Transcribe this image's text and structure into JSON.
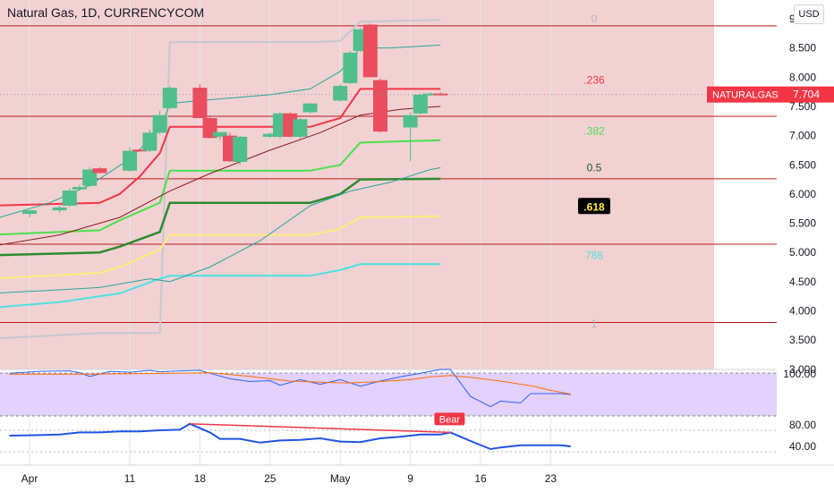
{
  "header": {
    "title": "Natural Gas, 1D, CURRENCYCOM",
    "currency_button": "USD"
  },
  "colors": {
    "up": "#4fbf8c",
    "down": "#ea4d5d",
    "fib_236": "#f23645",
    "fib_382": "#4be14b",
    "fib_05": "#2e8b2e",
    "fib_618": "#ffeb7a",
    "fib_786": "#4ee1e1",
    "rsi_band": "#e3d1ff",
    "background_zone": "#f2d1d3",
    "price_label_bg": "#f23645"
  },
  "price_label": {
    "symbol": "NATURALGAS",
    "value": "7.704"
  },
  "fib_labels": [
    {
      "text": "0",
      "price": 9.0,
      "color": "#b2b5be"
    },
    {
      "text": ".236",
      "price": 7.95,
      "color": "#f23645"
    },
    {
      "text": ".382",
      "price": 7.08,
      "color": "#4be14b"
    },
    {
      "text": "0.5",
      "price": 6.45,
      "color": "#1b5e20"
    },
    {
      "text": ".618",
      "price": 5.78,
      "color": "#ffeb3b"
    },
    {
      "text": "786",
      "price": 4.95,
      "color": "#4ee1e1"
    },
    {
      "text": "1",
      "price": 3.78,
      "color": "#b2b5be"
    }
  ],
  "chart_data": [
    {
      "type": "candlestick",
      "title": "Natural Gas, 1D, CURRENCYCOM",
      "y_axis_labels": [
        "9.000",
        "8.500",
        "8.000",
        "7.500",
        "7.000",
        "6.500",
        "6.000",
        "5.500",
        "5.000",
        "4.500",
        "4.000",
        "3.500",
        "3.000"
      ],
      "y_range": [
        2.95,
        9.3
      ],
      "x_axis_labels": [
        "Apr",
        "11",
        "18",
        "25",
        "May",
        "9",
        "16",
        "23"
      ],
      "x_axis_label_days": [
        1,
        11,
        18,
        25,
        32,
        39,
        46,
        53
      ],
      "candles": [
        {
          "day": 1,
          "open": 5.66,
          "high": 5.72,
          "low": 5.6,
          "close": 5.72
        },
        {
          "day": 4,
          "open": 5.72,
          "high": 5.8,
          "low": 5.68,
          "close": 5.77
        },
        {
          "day": 5,
          "open": 5.8,
          "high": 6.1,
          "low": 5.78,
          "close": 6.06
        },
        {
          "day": 6,
          "open": 6.08,
          "high": 6.16,
          "low": 6.06,
          "close": 6.12
        },
        {
          "day": 7,
          "open": 6.14,
          "high": 6.46,
          "low": 6.12,
          "close": 6.42
        },
        {
          "day": 8,
          "open": 6.44,
          "high": 6.46,
          "low": 6.35,
          "close": 6.36
        },
        {
          "day": 11,
          "open": 6.4,
          "high": 6.8,
          "low": 6.38,
          "close": 6.74
        },
        {
          "day": 12,
          "open": 6.76,
          "high": 6.78,
          "low": 6.72,
          "close": 6.74
        },
        {
          "day": 13,
          "open": 6.74,
          "high": 7.1,
          "low": 6.72,
          "close": 7.05
        },
        {
          "day": 14,
          "open": 7.05,
          "high": 7.42,
          "low": 7.02,
          "close": 7.35
        },
        {
          "day": 15,
          "open": 7.47,
          "high": 7.85,
          "low": 7.45,
          "close": 7.82
        },
        {
          "day": 18,
          "open": 7.82,
          "high": 7.88,
          "low": 7.3,
          "close": 7.3
        },
        {
          "day": 19,
          "open": 7.3,
          "high": 7.32,
          "low": 6.95,
          "close": 6.96
        },
        {
          "day": 20,
          "open": 6.98,
          "high": 7.05,
          "low": 6.92,
          "close": 7.06
        },
        {
          "day": 21,
          "open": 7.0,
          "high": 7.05,
          "low": 6.55,
          "close": 6.56
        },
        {
          "day": 22,
          "open": 6.55,
          "high": 7.0,
          "low": 6.5,
          "close": 6.98
        },
        {
          "day": 25,
          "open": 6.98,
          "high": 7.06,
          "low": 6.96,
          "close": 7.03
        },
        {
          "day": 26,
          "open": 6.98,
          "high": 7.4,
          "low": 6.95,
          "close": 7.38
        },
        {
          "day": 27,
          "open": 7.38,
          "high": 7.4,
          "low": 6.97,
          "close": 6.98
        },
        {
          "day": 28,
          "open": 6.98,
          "high": 7.3,
          "low": 6.95,
          "close": 7.28
        },
        {
          "day": 29,
          "open": 7.4,
          "high": 7.56,
          "low": 7.38,
          "close": 7.55
        },
        {
          "day": 32,
          "open": 7.6,
          "high": 7.88,
          "low": 7.58,
          "close": 7.85
        },
        {
          "day": 33,
          "open": 7.9,
          "high": 8.45,
          "low": 7.88,
          "close": 8.42
        },
        {
          "day": 34,
          "open": 8.45,
          "high": 8.85,
          "low": 8.43,
          "close": 8.82
        },
        {
          "day": 35,
          "open": 8.9,
          "high": 8.92,
          "low": 8.0,
          "close": 8.0
        },
        {
          "day": 36,
          "open": 7.95,
          "high": 7.98,
          "low": 7.05,
          "close": 7.07
        },
        {
          "day": 39,
          "open": 7.14,
          "high": 7.4,
          "low": 6.56,
          "close": 7.35
        },
        {
          "day": 40,
          "open": 7.38,
          "high": 7.72,
          "low": 7.36,
          "close": 7.7
        },
        {
          "day": 41,
          "open": 7.7,
          "high": 7.74,
          "low": 7.68,
          "close": 7.72
        },
        {
          "day": 42,
          "open": 7.72,
          "high": 7.74,
          "low": 7.68,
          "close": 7.7
        }
      ],
      "horizontal_lines": [
        8.88,
        7.33,
        6.26,
        5.14,
        3.8
      ],
      "last_price": 7.704
    },
    {
      "type": "line",
      "panel": "indicator-1",
      "y_axis_labels": [
        "100.00"
      ],
      "series": [
        {
          "color": "#2962ff",
          "points": [
            [
              -1,
              92
            ],
            [
              2,
              96
            ],
            [
              5,
              97
            ],
            [
              6,
              93
            ],
            [
              7,
              85
            ],
            [
              9,
              96
            ],
            [
              11,
              94
            ],
            [
              13,
              98
            ],
            [
              14,
              95
            ],
            [
              16,
              97
            ],
            [
              18,
              98
            ],
            [
              19,
              92
            ],
            [
              21,
              80
            ],
            [
              23,
              74
            ],
            [
              25,
              76
            ],
            [
              26,
              66
            ],
            [
              28,
              78
            ],
            [
              30,
              68
            ],
            [
              32,
              78
            ],
            [
              34,
              64
            ],
            [
              36,
              75
            ],
            [
              38,
              84
            ],
            [
              40,
              92
            ],
            [
              42,
              100
            ],
            [
              43,
              100
            ],
            [
              45,
              42
            ],
            [
              47,
              20
            ],
            [
              48,
              32
            ],
            [
              50,
              28
            ],
            [
              51,
              48
            ],
            [
              52,
              48
            ],
            [
              54,
              48
            ],
            [
              55,
              46
            ]
          ]
        },
        {
          "color": "#ff6d00",
          "points": [
            [
              -1,
              90
            ],
            [
              3,
              90
            ],
            [
              7,
              90
            ],
            [
              11,
              91
            ],
            [
              15,
              92
            ],
            [
              19,
              93
            ],
            [
              21,
              89
            ],
            [
              23,
              85
            ],
            [
              25,
              80
            ],
            [
              27,
              75
            ],
            [
              31,
              72
            ],
            [
              33,
              71
            ],
            [
              36,
              74
            ],
            [
              39,
              78
            ],
            [
              41,
              84
            ],
            [
              43,
              87
            ],
            [
              45,
              83
            ],
            [
              48,
              75
            ],
            [
              51,
              65
            ],
            [
              53,
              55
            ],
            [
              55,
              47
            ]
          ]
        }
      ]
    },
    {
      "type": "line",
      "panel": "rsi",
      "y_axis_labels": [
        "80.00",
        "40.00"
      ],
      "annotations": [
        "Bear"
      ],
      "series": [
        {
          "color": "#1e53e5",
          "points": [
            [
              -1,
              60
            ],
            [
              2,
              61
            ],
            [
              4,
              62
            ],
            [
              6,
              66
            ],
            [
              8,
              66
            ],
            [
              10,
              68
            ],
            [
              12,
              68
            ],
            [
              14,
              70
            ],
            [
              16,
              71
            ],
            [
              17,
              82
            ],
            [
              19,
              66
            ],
            [
              20,
              54
            ],
            [
              22,
              54
            ],
            [
              24,
              47
            ],
            [
              26,
              51
            ],
            [
              28,
              52
            ],
            [
              30,
              55
            ],
            [
              32,
              49
            ],
            [
              34,
              48
            ],
            [
              36,
              55
            ],
            [
              38,
              58
            ],
            [
              40,
              62
            ],
            [
              42,
              62
            ],
            [
              43,
              66
            ],
            [
              45,
              50
            ],
            [
              47,
              35
            ],
            [
              48,
              38
            ],
            [
              50,
              42
            ],
            [
              52,
              42
            ],
            [
              54,
              42
            ],
            [
              55,
              40
            ]
          ]
        },
        {
          "color": "#f23645",
          "points": [
            [
              17,
              82
            ],
            [
              43,
              66
            ]
          ]
        }
      ]
    }
  ]
}
